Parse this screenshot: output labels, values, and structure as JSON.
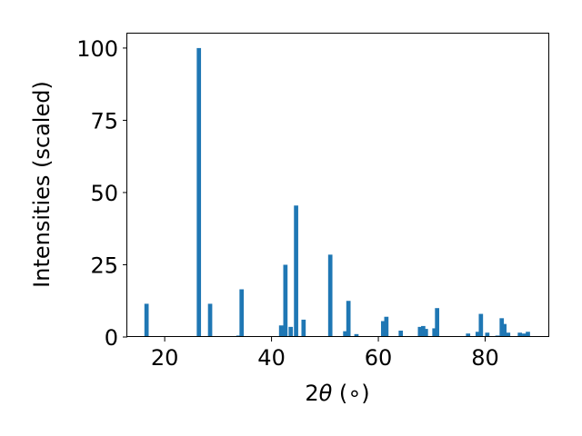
{
  "chart_data": {
    "type": "bar",
    "xlabel_parts": {
      "prefix": "2",
      "theta": "θ",
      "unit": " (∘)"
    },
    "ylabel": "Intensities (scaled)",
    "xlim": [
      13,
      92
    ],
    "ylim": [
      0,
      105
    ],
    "xticks": [
      20,
      40,
      60,
      80
    ],
    "yticks": [
      0,
      25,
      50,
      75,
      100
    ],
    "grid": false,
    "color": "#1f77b4",
    "series": [
      {
        "x": [
          16.6,
          26.4,
          28.5,
          29.3,
          31.9,
          33.8,
          34.4,
          41.8,
          42.6,
          43.6,
          44.6,
          46.0,
          47.6,
          51.0,
          53.8,
          54.4,
          55.9,
          58.6,
          59.8,
          60.9,
          61.5,
          64.2,
          67.8,
          68.4,
          68.9,
          70.5,
          71.0,
          76.8,
          78.6,
          79.2,
          80.4,
          82.3,
          83.1,
          83.6,
          84.3,
          86.5,
          87.3,
          88.0
        ],
        "values": [
          11.5,
          100.0,
          11.5,
          0.3,
          0.3,
          0.5,
          16.5,
          4.0,
          25.0,
          3.5,
          45.5,
          6.0,
          0.3,
          28.5,
          2.0,
          12.5,
          1.0,
          0.3,
          0.3,
          5.5,
          7.0,
          2.2,
          3.5,
          3.8,
          2.8,
          3.0,
          10.0,
          1.2,
          1.8,
          8.0,
          1.5,
          0.5,
          6.5,
          4.5,
          1.5,
          1.5,
          1.2,
          1.8
        ]
      }
    ]
  }
}
